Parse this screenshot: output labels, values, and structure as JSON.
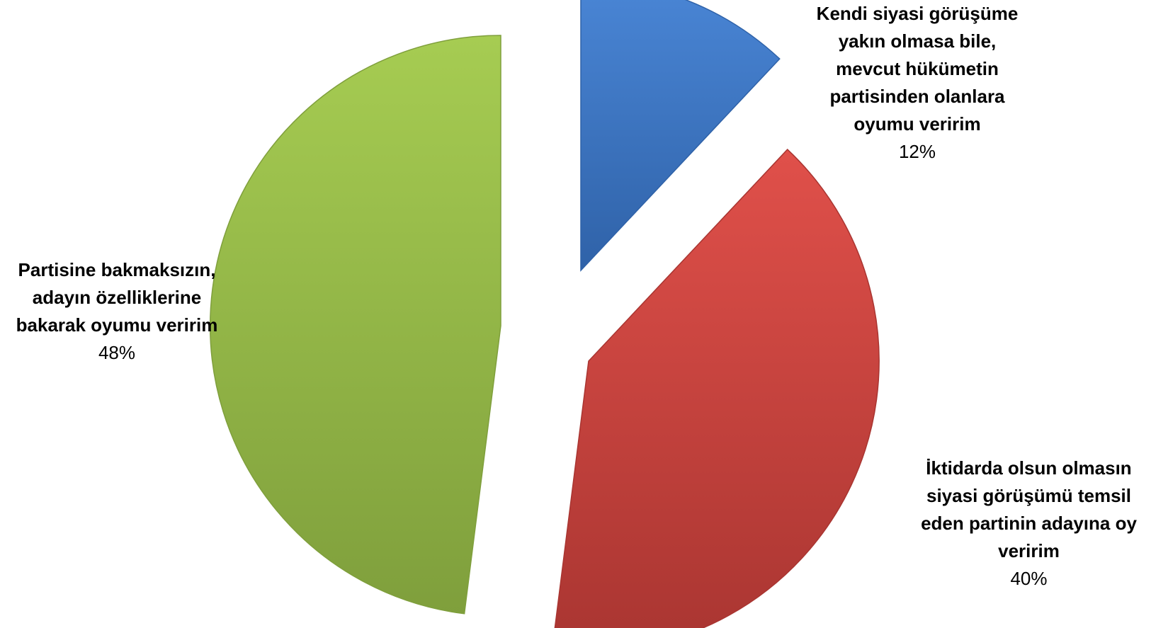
{
  "chart_data": {
    "type": "pie",
    "title": "",
    "legend": "none",
    "exploded": true,
    "slices": [
      {
        "label_lines": [
          "Kendi siyasi görüşüme",
          "yakın  olmasa bile,",
          "mevcut hükümetin",
          "partisinden olanlara",
          "oyumu veririm"
        ],
        "percent_label": "12%",
        "value": 12,
        "color": "#4a86d6",
        "color_dark": "#2f62a8"
      },
      {
        "label_lines": [
          "İktidarda olsun olmasın",
          "siyasi görüşümü temsil",
          "eden partinin adayına oy",
          "veririm"
        ],
        "percent_label": "40%",
        "value": 40,
        "color": "#e0504a",
        "color_dark": "#a93531"
      },
      {
        "label_lines": [
          "Partisine bakmaksızın,",
          "adayın özelliklerine",
          "bakarak oyumu veririm"
        ],
        "percent_label": "48%",
        "value": 48,
        "color": "#a6cc52",
        "color_dark": "#7f9f3c"
      }
    ]
  }
}
